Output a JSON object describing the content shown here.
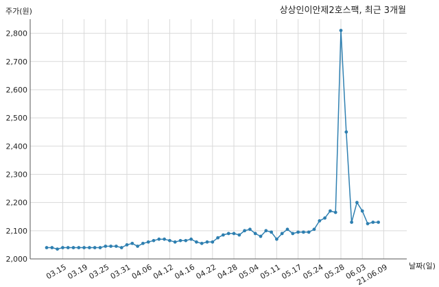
{
  "chart_data": {
    "type": "line",
    "title": "상상인이안제2호스팩, 최근 3개월",
    "ylabel": "주가(원)",
    "xlabel": "날짜(일)",
    "ylim": [
      2000,
      2850
    ],
    "yticks": [
      2000,
      2100,
      2200,
      2300,
      2400,
      2500,
      2600,
      2700,
      2800
    ],
    "ytick_labels": [
      "2,000",
      "2,100",
      "2,200",
      "2,300",
      "2,400",
      "2,500",
      "2,600",
      "2,700",
      "2,800"
    ],
    "xtick_labels": [
      "03.15",
      "03.19",
      "03.25",
      "03.31",
      "04.06",
      "04.12",
      "04.16",
      "04.22",
      "04.28",
      "05.04",
      "05.11",
      "05.17",
      "05.24",
      "05.28",
      "06.03",
      "21.06.09"
    ],
    "xtick_index": [
      3,
      7,
      11,
      15,
      19,
      23,
      27,
      31,
      35,
      39,
      43,
      47,
      51,
      55,
      59,
      63
    ],
    "grid": true,
    "series": [
      {
        "color": "#2e7fb0",
        "values": [
          2040,
          2040,
          2035,
          2040,
          2040,
          2040,
          2040,
          2040,
          2040,
          2040,
          2040,
          2045,
          2045,
          2045,
          2040,
          2050,
          2055,
          2045,
          2055,
          2060,
          2065,
          2070,
          2070,
          2065,
          2060,
          2065,
          2065,
          2070,
          2060,
          2055,
          2060,
          2060,
          2075,
          2085,
          2090,
          2090,
          2085,
          2100,
          2105,
          2090,
          2080,
          2100,
          2095,
          2070,
          2090,
          2105,
          2090,
          2095,
          2095,
          2095,
          2105,
          2135,
          2145,
          2170,
          2165,
          2810,
          2450,
          2130,
          2200,
          2170,
          2125,
          2130,
          2130
        ]
      }
    ]
  }
}
